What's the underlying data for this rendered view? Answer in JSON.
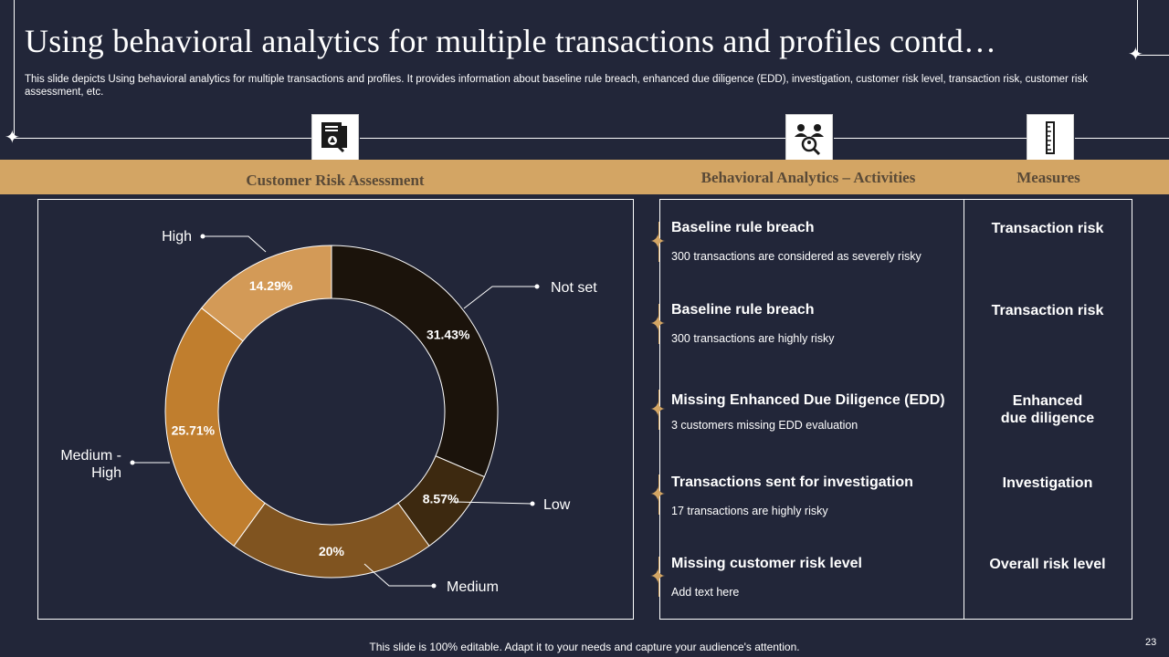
{
  "title": "Using behavioral analytics for multiple transactions and profiles contd…",
  "description": "This slide depicts Using behavioral analytics for multiple transactions and profiles. It provides information about baseline rule breach, enhanced due diligence (EDD), investigation, customer risk level, transaction risk, customer risk assessment, etc.",
  "sections": {
    "risk_assessment": "Customer Risk Assessment",
    "activities": "Behavioral Analytics – Activities",
    "measures": "Measures"
  },
  "icons": [
    "document-search-icon",
    "people-search-icon",
    "ruler-icon"
  ],
  "activities": [
    {
      "title": "Baseline rule breach",
      "desc": "300 transactions are considered as severely risky",
      "measure": "Transaction risk"
    },
    {
      "title": "Baseline rule breach",
      "desc": "300 transactions are highly risky",
      "measure": "Transaction risk"
    },
    {
      "title": "Missing Enhanced Due Diligence (EDD)",
      "desc": "3 customers missing EDD evaluation",
      "measure_line1": "Enhanced",
      "measure_line2": "due diligence"
    },
    {
      "title": "Transactions sent for investigation",
      "desc": "17 transactions are highly risky",
      "measure": "Investigation"
    },
    {
      "title": "Missing customer risk level",
      "desc": "Add text here",
      "measure": "Overall risk level"
    }
  ],
  "chart_data": {
    "type": "pie",
    "donut": true,
    "categories": [
      "Not set",
      "Low",
      "Medium",
      "Medium - High",
      "High"
    ],
    "values": [
      31.43,
      8.57,
      20,
      25.71,
      14.29
    ],
    "value_labels": [
      "31.43%",
      "8.57%",
      "20%",
      "25.71%",
      "14.29%"
    ],
    "colors": [
      "#1b130b",
      "#3d2910",
      "#805420",
      "#c07e2e",
      "#d39a57"
    ],
    "legend": "callout-labels"
  },
  "footer": "This slide is 100% editable. Adapt it to your needs and capture your audience's attention.",
  "page_number": "23"
}
